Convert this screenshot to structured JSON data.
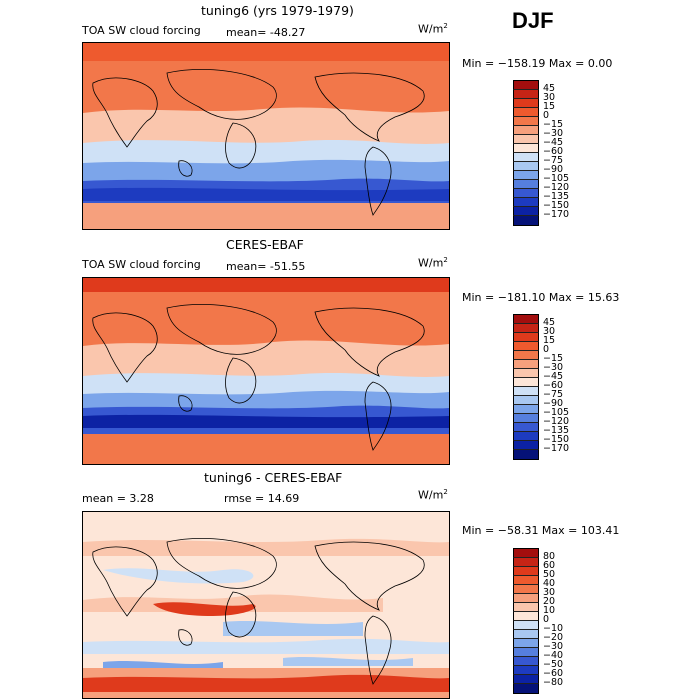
{
  "season": "DJF",
  "units": "W/m",
  "units_exp": "2",
  "panels": [
    {
      "title": "tuning6 (yrs 1979-1979)",
      "variable": "TOA SW cloud forcing",
      "stat1": "mean= -48.27",
      "stat2": "",
      "minmax": "Min = −158.19 Max =    0.00",
      "ticks": [
        "45",
        "30",
        "15",
        "0",
        "−15",
        "−30",
        "−45",
        "−60",
        "−75",
        "−90",
        "−105",
        "−120",
        "−135",
        "−150",
        "−170"
      ],
      "colors": [
        "#a30e0e",
        "#c62416",
        "#df3a1c",
        "#ee5a2e",
        "#f2774a",
        "#f6a07d",
        "#fac6ad",
        "#fde6d8",
        "#cfe1f6",
        "#a9c8f1",
        "#7ca5ea",
        "#567fde",
        "#3758d1",
        "#1d3bc0",
        "#0c22a4",
        "#051278"
      ]
    },
    {
      "title": "CERES-EBAF",
      "variable": "TOA SW cloud forcing",
      "stat1": "mean= -51.55",
      "stat2": "",
      "minmax": "Min = −181.10 Max =  15.63",
      "ticks": [
        "45",
        "30",
        "15",
        "0",
        "−15",
        "−30",
        "−45",
        "−60",
        "−75",
        "−90",
        "−105",
        "−120",
        "−135",
        "−150",
        "−170"
      ],
      "colors": [
        "#a30e0e",
        "#c62416",
        "#df3a1c",
        "#ee5a2e",
        "#f2774a",
        "#f6a07d",
        "#fac6ad",
        "#fde6d8",
        "#cfe1f6",
        "#a9c8f1",
        "#7ca5ea",
        "#567fde",
        "#3758d1",
        "#1d3bc0",
        "#0c22a4",
        "#051278"
      ]
    },
    {
      "title": "tuning6 - CERES-EBAF",
      "variable": "",
      "stat1": "mean =    3.28",
      "stat2": "rmse =   14.69",
      "minmax": "Min = −58.31 Max = 103.41",
      "ticks": [
        "80",
        "60",
        "50",
        "40",
        "30",
        "20",
        "10",
        "0",
        "−10",
        "−20",
        "−30",
        "−40",
        "−50",
        "−60",
        "−80"
      ],
      "colors": [
        "#a30e0e",
        "#c62416",
        "#df3a1c",
        "#ee5a2e",
        "#f2774a",
        "#f6a07d",
        "#fac6ad",
        "#fde6d8",
        "#cfe1f6",
        "#a9c8f1",
        "#7ca5ea",
        "#567fde",
        "#3758d1",
        "#1d3bc0",
        "#0c22a4",
        "#051278"
      ]
    }
  ]
}
